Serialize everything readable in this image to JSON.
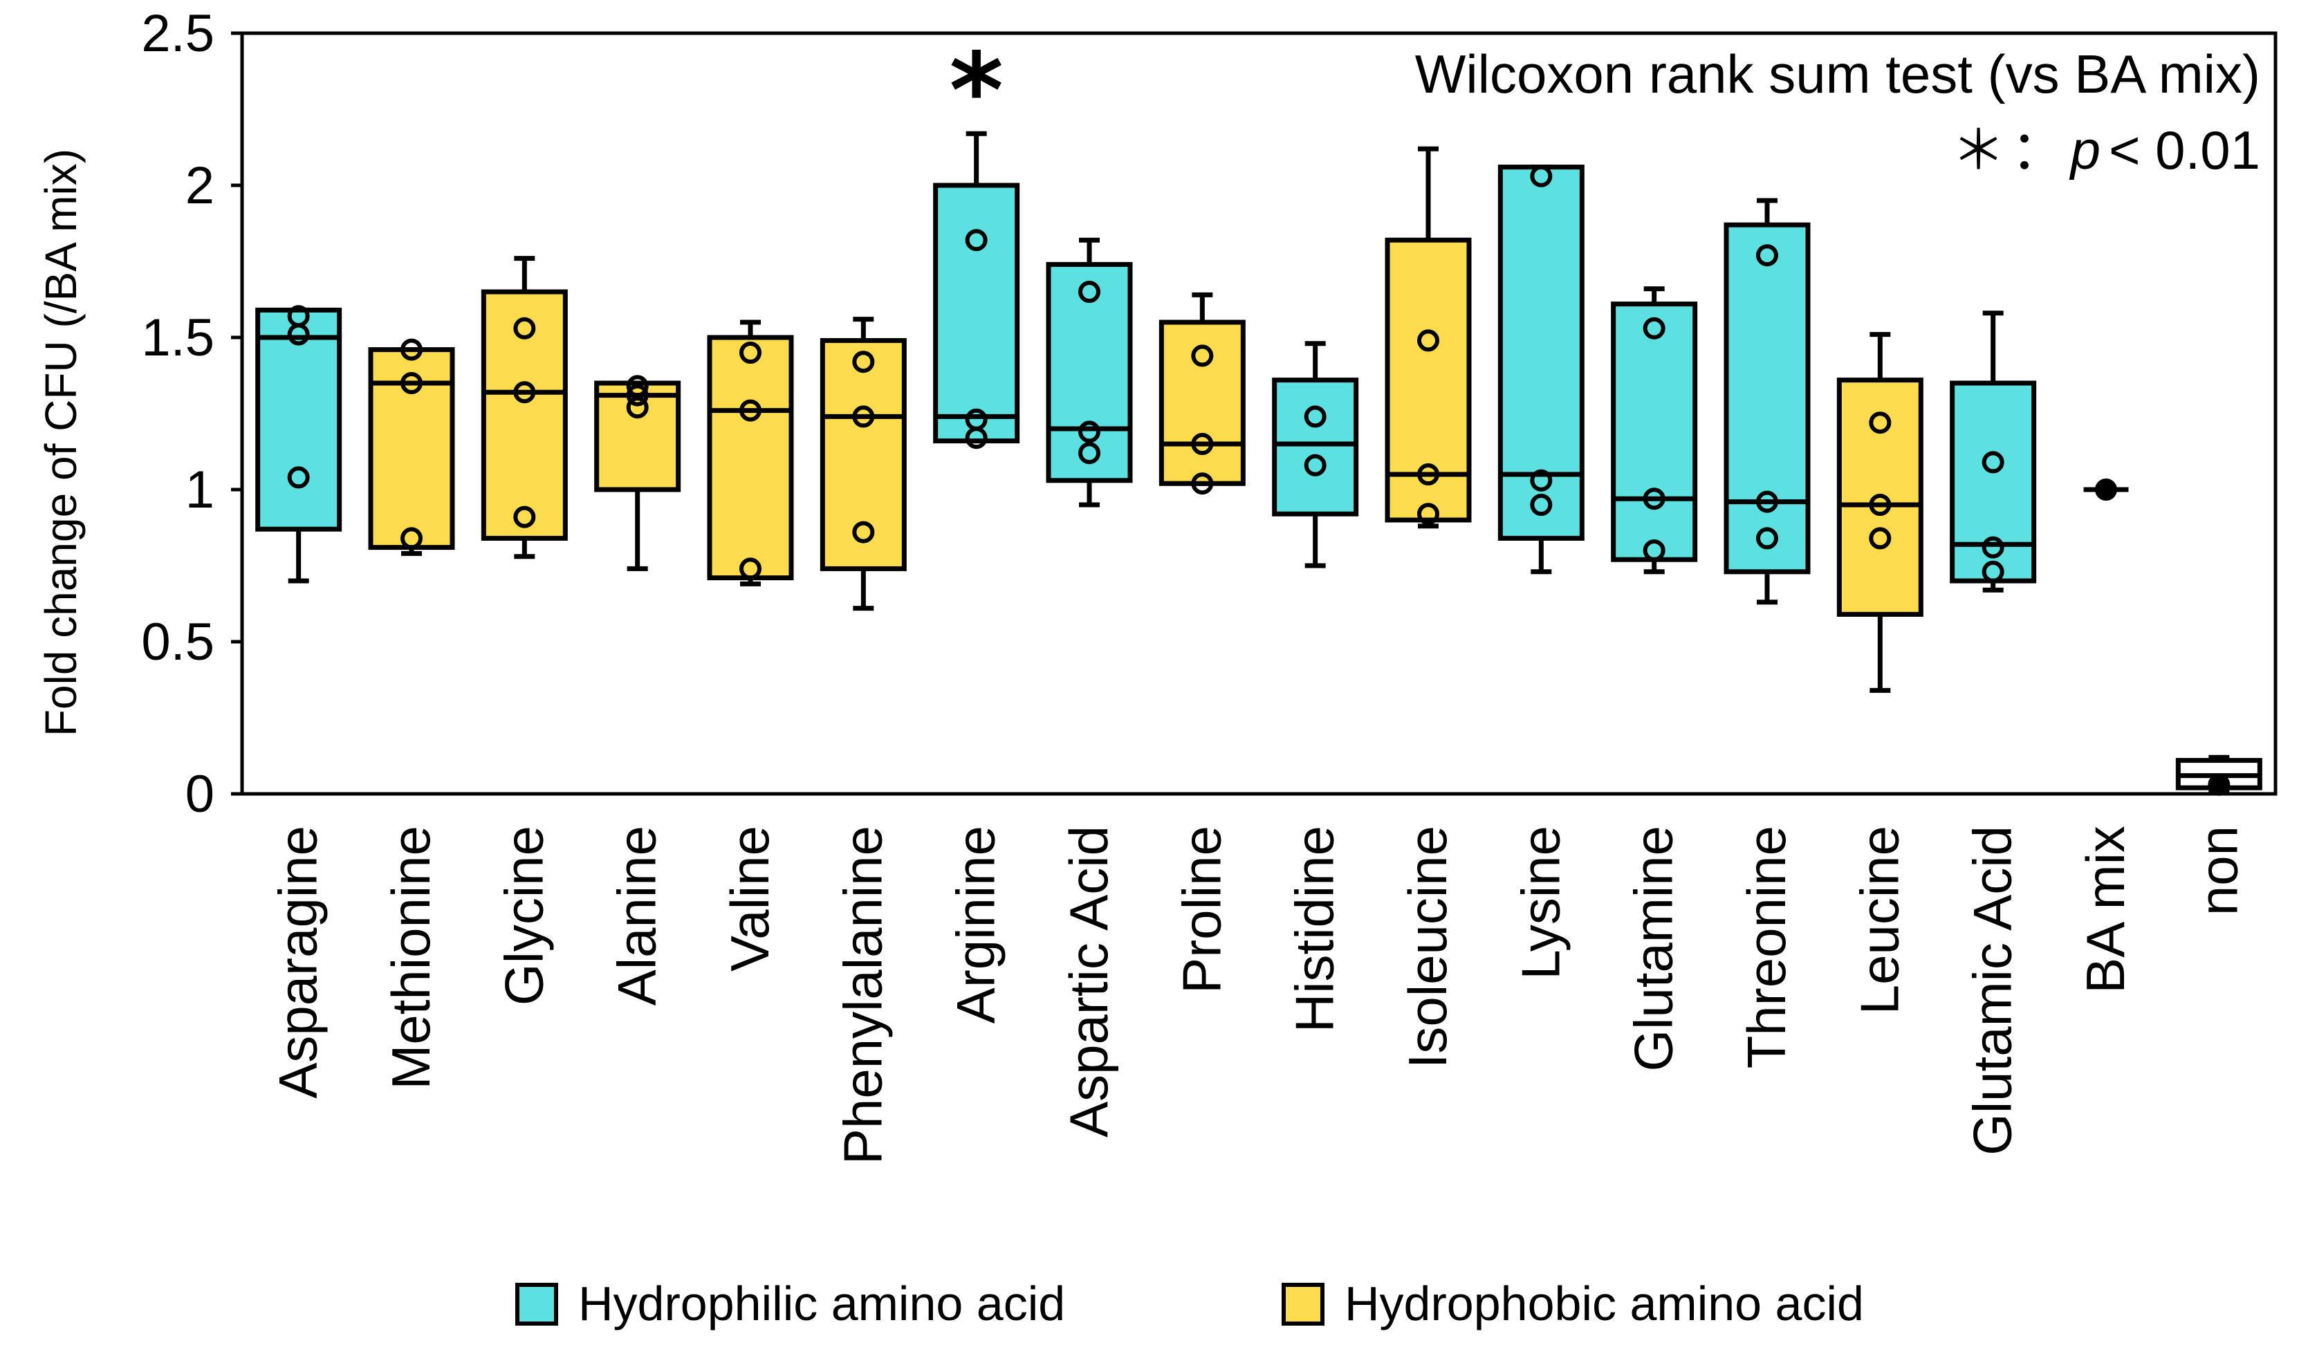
{
  "chart_data": {
    "type": "box",
    "title": "",
    "xlabel": "",
    "ylabel": "Fold change of CFU (/BA mix)",
    "ylim": [
      0,
      2.5
    ],
    "yticks": [
      "0",
      "0.5",
      "1",
      "1.5",
      "2",
      "2.5"
    ],
    "annotation_line1": "Wilcoxon rank sum test (vs BA mix)",
    "annotation_star": "＊",
    "annotation_colon": "：",
    "annotation_p": "p",
    "annotation_threshold": "< 0.01",
    "significance_mark": "*",
    "colors": {
      "hydrophilic": "#5ce1e0",
      "hydrophobic": "#fcdc4c",
      "outline": "#000000",
      "neutral": "#ffffff"
    },
    "legend": [
      {
        "label": "Hydrophilic amino acid",
        "group": "hydrophilic"
      },
      {
        "label": "Hydrophobic amino acid",
        "group": "hydrophobic"
      }
    ],
    "categories": [
      {
        "name": "Asparagine",
        "group": "hydrophilic",
        "whisker_low": 0.7,
        "q1": 0.87,
        "median": 1.5,
        "q3": 1.59,
        "whisker_high": 1.59,
        "points": [
          1.04,
          1.51,
          1.57
        ],
        "significant": false
      },
      {
        "name": "Methionine",
        "group": "hydrophobic",
        "whisker_low": 0.79,
        "q1": 0.81,
        "median": 1.35,
        "q3": 1.46,
        "whisker_high": 1.46,
        "points": [
          0.84,
          1.35,
          1.46
        ],
        "significant": false
      },
      {
        "name": "Glycine",
        "group": "hydrophobic",
        "whisker_low": 0.78,
        "q1": 0.84,
        "median": 1.32,
        "q3": 1.65,
        "whisker_high": 1.76,
        "points": [
          0.91,
          1.53,
          1.32
        ],
        "significant": false
      },
      {
        "name": "Alanine",
        "group": "hydrophobic",
        "whisker_low": 0.74,
        "q1": 1.0,
        "median": 1.31,
        "q3": 1.35,
        "whisker_high": 1.35,
        "points": [
          1.27,
          1.31,
          1.34
        ],
        "significant": false
      },
      {
        "name": "Valine",
        "group": "hydrophobic",
        "whisker_low": 0.69,
        "q1": 0.71,
        "median": 1.26,
        "q3": 1.5,
        "whisker_high": 1.55,
        "points": [
          0.74,
          1.26,
          1.45
        ],
        "significant": false
      },
      {
        "name": "Phenylalanine",
        "group": "hydrophobic",
        "whisker_low": 0.61,
        "q1": 0.74,
        "median": 1.24,
        "q3": 1.49,
        "whisker_high": 1.56,
        "points": [
          0.86,
          1.24,
          1.42
        ],
        "significant": false
      },
      {
        "name": "Arginine",
        "group": "hydrophilic",
        "whisker_low": 1.16,
        "q1": 1.16,
        "median": 1.24,
        "q3": 2.0,
        "whisker_high": 2.17,
        "points": [
          1.17,
          1.23,
          1.82
        ],
        "significant": true
      },
      {
        "name": "Aspartic Acid",
        "group": "hydrophilic",
        "whisker_low": 0.95,
        "q1": 1.03,
        "median": 1.2,
        "q3": 1.74,
        "whisker_high": 1.82,
        "points": [
          1.12,
          1.19,
          1.65
        ],
        "significant": false
      },
      {
        "name": "Proline",
        "group": "hydrophobic",
        "whisker_low": 1.02,
        "q1": 1.02,
        "median": 1.15,
        "q3": 1.55,
        "whisker_high": 1.64,
        "points": [
          1.02,
          1.15,
          1.44
        ],
        "significant": false
      },
      {
        "name": "Histidine",
        "group": "hydrophilic",
        "whisker_low": 0.75,
        "q1": 0.92,
        "median": 1.15,
        "q3": 1.36,
        "whisker_high": 1.48,
        "points": [
          1.08,
          1.24
        ],
        "significant": false
      },
      {
        "name": "Isoleucine",
        "group": "hydrophobic",
        "whisker_low": 0.88,
        "q1": 0.9,
        "median": 1.05,
        "q3": 1.82,
        "whisker_high": 2.12,
        "points": [
          0.92,
          1.05,
          1.49
        ],
        "significant": false
      },
      {
        "name": "Lysine",
        "group": "hydrophilic",
        "whisker_low": 0.73,
        "q1": 0.84,
        "median": 1.05,
        "q3": 2.06,
        "whisker_high": 2.06,
        "points": [
          0.95,
          1.03,
          2.03
        ],
        "significant": false
      },
      {
        "name": "Glutamine",
        "group": "hydrophilic",
        "whisker_low": 0.73,
        "q1": 0.77,
        "median": 0.97,
        "q3": 1.61,
        "whisker_high": 1.66,
        "points": [
          0.8,
          0.97,
          1.53
        ],
        "significant": false
      },
      {
        "name": "Threonine",
        "group": "hydrophilic",
        "whisker_low": 0.63,
        "q1": 0.73,
        "median": 0.96,
        "q3": 1.87,
        "whisker_high": 1.95,
        "points": [
          0.84,
          0.96,
          1.77
        ],
        "significant": false
      },
      {
        "name": "Leucine",
        "group": "hydrophobic",
        "whisker_low": 0.34,
        "q1": 0.59,
        "median": 0.95,
        "q3": 1.36,
        "whisker_high": 1.51,
        "points": [
          0.84,
          0.95,
          1.22
        ],
        "significant": false
      },
      {
        "name": "Glutamic Acid",
        "group": "hydrophilic",
        "whisker_low": 0.67,
        "q1": 0.7,
        "median": 0.82,
        "q3": 1.35,
        "whisker_high": 1.58,
        "points": [
          0.73,
          0.81,
          1.09
        ],
        "significant": false
      },
      {
        "name": "BA mix",
        "group": "neutral",
        "whisker_low": 1.0,
        "q1": 1.0,
        "median": 1.0,
        "q3": 1.0,
        "whisker_high": 1.0,
        "points": [
          1.0
        ],
        "significant": false
      },
      {
        "name": "non",
        "group": "neutral",
        "whisker_low": 0.01,
        "q1": 0.02,
        "median": 0.06,
        "q3": 0.11,
        "whisker_high": 0.12,
        "points": [
          0.03
        ],
        "significant": false
      }
    ]
  }
}
